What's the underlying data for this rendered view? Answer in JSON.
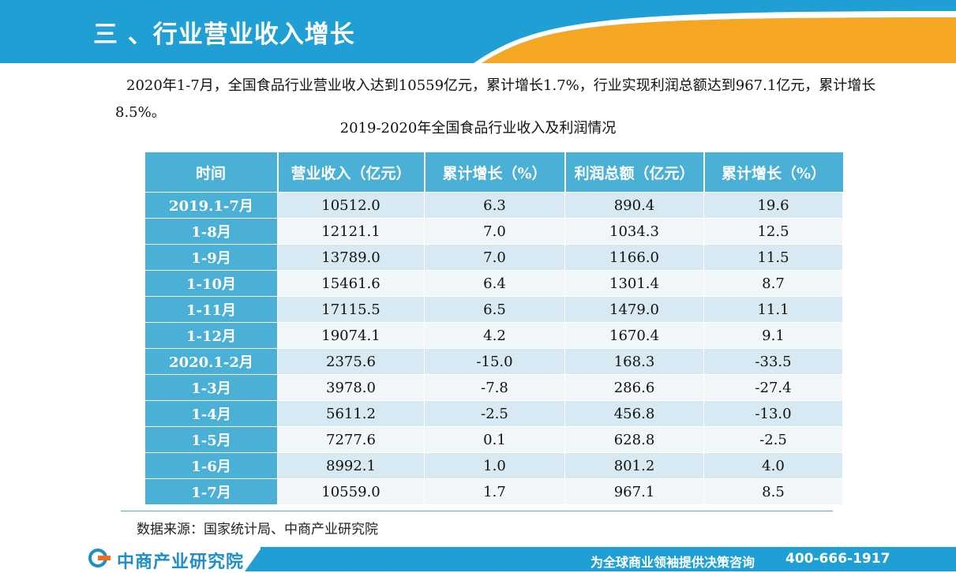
{
  "header": {
    "title": "三 、行业营业收入增长",
    "colors": {
      "primary": "#1f9fd3",
      "accent": "#f5a623"
    }
  },
  "intro": "2020年1-7月，全国食品行业营业收入达到10559亿元，累计增长1.7%，行业实现利润总额达到967.1亿元，累计增长8.5%。",
  "table": {
    "title": "2019-2020年全国食品行业收入及利润情况",
    "headers": [
      "时间",
      "营业收入（亿元）",
      "累计增长（%）",
      "利润总额（亿元）",
      "累计增长（%）"
    ],
    "rows": [
      [
        "2019.1-7月",
        "10512.0",
        "6.3",
        "890.4",
        "19.6"
      ],
      [
        "1-8月",
        "12121.1",
        "7.0",
        "1034.3",
        "12.5"
      ],
      [
        "1-9月",
        "13789.0",
        "7.0",
        "1166.0",
        "11.5"
      ],
      [
        "1-10月",
        "15461.6",
        "6.4",
        "1301.4",
        "8.7"
      ],
      [
        "1-11月",
        "17115.5",
        "6.5",
        "1479.0",
        "11.1"
      ],
      [
        "1-12月",
        "19074.1",
        "4.2",
        "1670.4",
        "9.1"
      ],
      [
        "2020.1-2月",
        "2375.6",
        "-15.0",
        "168.3",
        "-33.5"
      ],
      [
        "1-3月",
        "3978.0",
        "-7.8",
        "286.6",
        "-27.4"
      ],
      [
        "1-4月",
        "5611.2",
        "-2.5",
        "456.8",
        "-13.0"
      ],
      [
        "1-5月",
        "7277.6",
        "0.1",
        "628.8",
        "-2.5"
      ],
      [
        "1-6月",
        "8992.1",
        "1.0",
        "801.2",
        "4.0"
      ],
      [
        "1-7月",
        "10559.0",
        "1.7",
        "967.1",
        "8.5"
      ]
    ]
  },
  "source": "数据来源：国家统计局、中商产业研究院",
  "footer": {
    "logo_text": "中商产业研究院",
    "slogan": "为全球商业领袖提供决策咨询",
    "phone": "400-666-1917"
  }
}
